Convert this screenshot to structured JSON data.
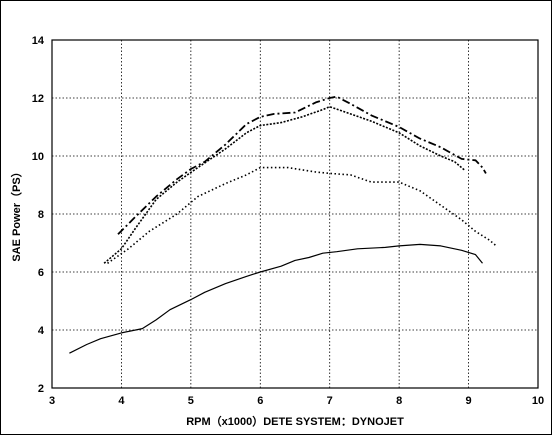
{
  "chart_data": {
    "type": "line",
    "title": "",
    "xlabel": "RPM（x1000）DETE SYSTEM：DYNOJET",
    "ylabel": "SAE Power（PS）",
    "xlim": [
      3,
      10
    ],
    "ylim": [
      2,
      14
    ],
    "x_ticks": [
      "3",
      "4",
      "5",
      "6",
      "7",
      "8",
      "9",
      "10"
    ],
    "y_ticks": [
      "2",
      "4",
      "6",
      "8",
      "10",
      "12",
      "14"
    ],
    "grid": true,
    "legend": "none",
    "series": [
      {
        "style": "dash-dot",
        "points": [
          [
            3.95,
            7.3
          ],
          [
            4.2,
            7.9
          ],
          [
            4.5,
            8.6
          ],
          [
            4.8,
            9.2
          ],
          [
            5.0,
            9.55
          ],
          [
            5.2,
            9.8
          ],
          [
            5.5,
            10.4
          ],
          [
            5.8,
            11.1
          ],
          [
            6.0,
            11.35
          ],
          [
            6.2,
            11.45
          ],
          [
            6.5,
            11.5
          ],
          [
            6.8,
            11.85
          ],
          [
            7.0,
            12.0
          ],
          [
            7.1,
            12.05
          ],
          [
            7.3,
            11.8
          ],
          [
            7.6,
            11.4
          ],
          [
            8.0,
            11.0
          ],
          [
            8.3,
            10.6
          ],
          [
            8.6,
            10.3
          ],
          [
            8.9,
            9.9
          ],
          [
            9.1,
            9.85
          ],
          [
            9.2,
            9.6
          ],
          [
            9.25,
            9.4
          ]
        ]
      },
      {
        "style": "dotted",
        "points": [
          [
            3.75,
            6.3
          ],
          [
            4.0,
            6.8
          ],
          [
            4.2,
            7.5
          ],
          [
            4.5,
            8.5
          ],
          [
            4.8,
            9.1
          ],
          [
            5.1,
            9.6
          ],
          [
            5.5,
            10.25
          ],
          [
            5.8,
            10.8
          ],
          [
            6.0,
            11.05
          ],
          [
            6.3,
            11.15
          ],
          [
            6.6,
            11.35
          ],
          [
            6.9,
            11.6
          ],
          [
            7.0,
            11.7
          ],
          [
            7.3,
            11.45
          ],
          [
            7.6,
            11.2
          ],
          [
            8.0,
            10.8
          ],
          [
            8.3,
            10.35
          ],
          [
            8.6,
            10.0
          ],
          [
            8.8,
            9.8
          ],
          [
            8.9,
            9.6
          ],
          [
            8.95,
            9.5
          ]
        ]
      },
      {
        "style": "dense-dotted",
        "points": [
          [
            3.8,
            6.3
          ],
          [
            4.1,
            6.8
          ],
          [
            4.4,
            7.4
          ],
          [
            4.8,
            8.0
          ],
          [
            5.1,
            8.6
          ],
          [
            5.5,
            9.05
          ],
          [
            5.8,
            9.35
          ],
          [
            6.0,
            9.6
          ],
          [
            6.4,
            9.6
          ],
          [
            6.8,
            9.45
          ],
          [
            7.0,
            9.4
          ],
          [
            7.3,
            9.35
          ],
          [
            7.6,
            9.1
          ],
          [
            8.0,
            9.1
          ],
          [
            8.3,
            8.8
          ],
          [
            8.6,
            8.3
          ],
          [
            8.9,
            7.8
          ],
          [
            9.1,
            7.4
          ],
          [
            9.3,
            7.1
          ],
          [
            9.4,
            6.9
          ]
        ]
      },
      {
        "style": "solid",
        "points": [
          [
            3.25,
            3.2
          ],
          [
            3.5,
            3.5
          ],
          [
            3.7,
            3.7
          ],
          [
            4.0,
            3.9
          ],
          [
            4.3,
            4.05
          ],
          [
            4.5,
            4.35
          ],
          [
            4.7,
            4.7
          ],
          [
            5.0,
            5.05
          ],
          [
            5.2,
            5.3
          ],
          [
            5.5,
            5.6
          ],
          [
            5.8,
            5.85
          ],
          [
            6.0,
            6.0
          ],
          [
            6.3,
            6.2
          ],
          [
            6.5,
            6.4
          ],
          [
            6.7,
            6.5
          ],
          [
            6.9,
            6.65
          ],
          [
            7.1,
            6.7
          ],
          [
            7.4,
            6.8
          ],
          [
            7.8,
            6.85
          ],
          [
            8.0,
            6.9
          ],
          [
            8.3,
            6.95
          ],
          [
            8.6,
            6.9
          ],
          [
            8.9,
            6.75
          ],
          [
            9.1,
            6.6
          ],
          [
            9.2,
            6.3
          ]
        ]
      }
    ]
  }
}
